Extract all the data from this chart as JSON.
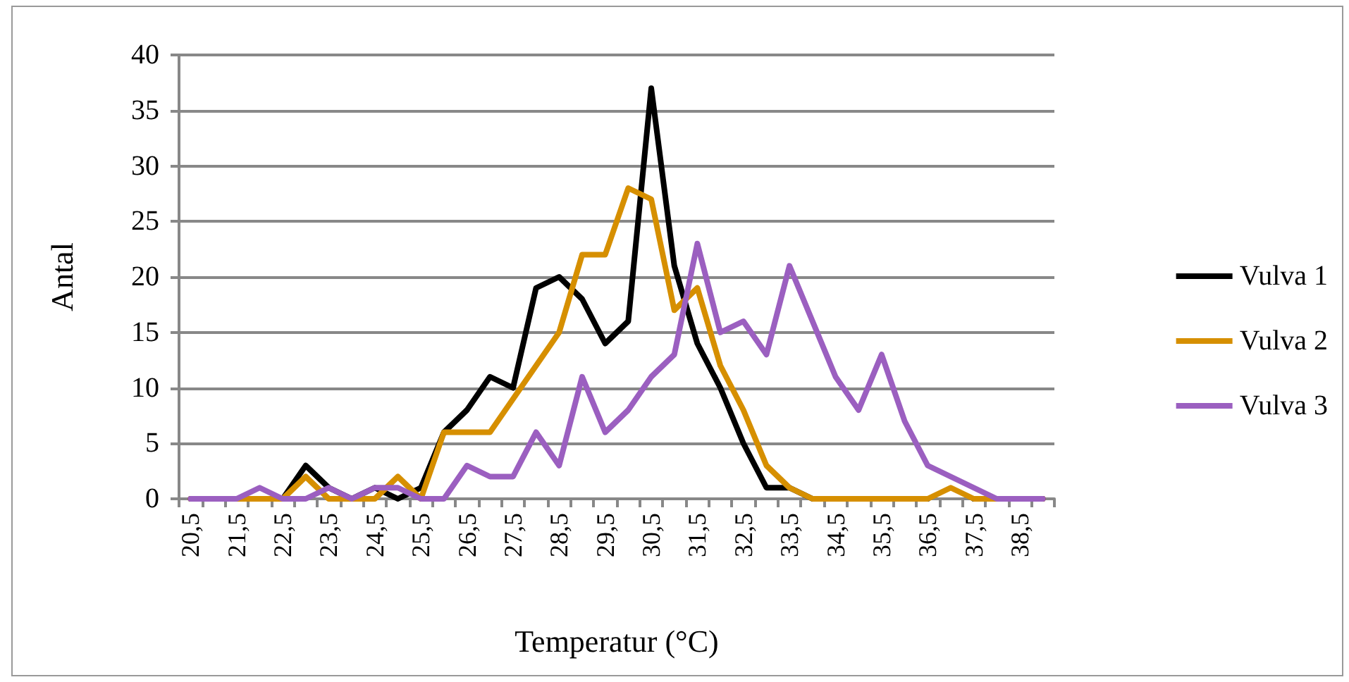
{
  "chart_data": {
    "type": "line",
    "xlabel": "Temperatur (°C)",
    "ylabel": "Antal",
    "categories": [
      "20,5",
      null,
      "21,5",
      null,
      "22,5",
      null,
      "23,5",
      null,
      "24,5",
      null,
      "25,5",
      null,
      "26,5",
      null,
      "27,5",
      null,
      "28,5",
      null,
      "29,5",
      null,
      "30,5",
      null,
      "31,5",
      null,
      "32,5",
      null,
      "33,5",
      null,
      "34,5",
      null,
      "35,5",
      null,
      "36,5",
      null,
      "37,5",
      null,
      "38,5",
      null
    ],
    "series": [
      {
        "name": "Vulva 1",
        "color": "#000000",
        "values": [
          0,
          0,
          0,
          0,
          0,
          3,
          1,
          0,
          1,
          0,
          1,
          6,
          8,
          11,
          10,
          19,
          20,
          18,
          14,
          16,
          37,
          21,
          14,
          10,
          5,
          1,
          1,
          0,
          0,
          0,
          0,
          0,
          0,
          null,
          0,
          0,
          0,
          0
        ]
      },
      {
        "name": "Vulva 2",
        "color": "#d68f00",
        "values": [
          0,
          0,
          0,
          0,
          0,
          2,
          0,
          0,
          0,
          2,
          0,
          6,
          6,
          6,
          9,
          12,
          15,
          22,
          22,
          28,
          27,
          17,
          19,
          12,
          8,
          3,
          1,
          0,
          0,
          0,
          0,
          0,
          0,
          1,
          0,
          0,
          0,
          0
        ]
      },
      {
        "name": "Vulva 3",
        "color": "#9b5fc0",
        "values": [
          0,
          0,
          0,
          1,
          0,
          0,
          1,
          0,
          1,
          1,
          0,
          0,
          3,
          2,
          2,
          6,
          3,
          11,
          6,
          8,
          11,
          13,
          23,
          15,
          16,
          13,
          21,
          16,
          11,
          8,
          13,
          7,
          3,
          2,
          1,
          0,
          0,
          0
        ]
      }
    ],
    "ylim": [
      0,
      40
    ],
    "yticks": [
      0,
      5,
      10,
      15,
      20,
      25,
      30,
      35,
      40
    ],
    "grid": "y",
    "legend": "right",
    "marker": "none",
    "line_style": "solid"
  }
}
